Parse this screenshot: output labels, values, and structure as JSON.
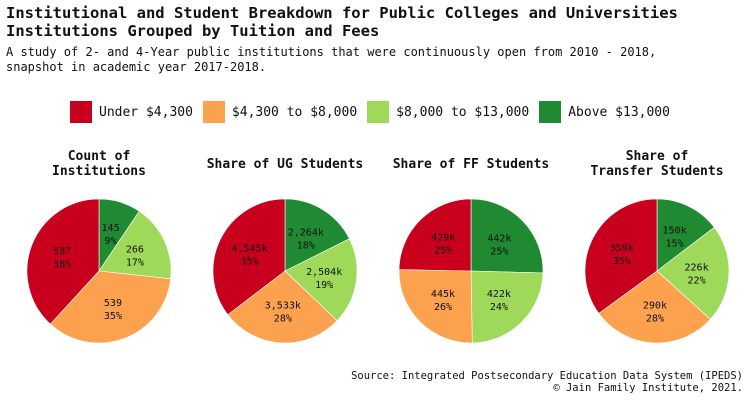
{
  "title": "Institutional and Student Breakdown for Public Colleges and Universities\nInstitutions Grouped by Tuition and Fees",
  "subtitle": "A study of 2- and 4-Year public institutions that were continuously open from 2010 - 2018,\nsnapshot in academic year 2017-2018.",
  "legend": [
    {
      "label": "Under $4,300",
      "color": "#c8001e"
    },
    {
      "label": "$4,300 to $8,000",
      "color": "#fca14e"
    },
    {
      "label": "$8,000 to $13,000",
      "color": "#9fd95a"
    },
    {
      "label": "Above $13,000",
      "color": "#1f8a32"
    }
  ],
  "source": "Source: Integrated Postsecondary Education Data System (IPEDS)\n© Jain Family Institute, 2021.",
  "chart_data": [
    {
      "type": "pie",
      "title": "Count of\nInstitutions",
      "categories": [
        "Under $4,300",
        "$4,300 to $8,000",
        "$8,000 to $13,000",
        "Above $13,000"
      ],
      "values": [
        587,
        539,
        266,
        145
      ],
      "value_labels": [
        "587",
        "539",
        "266",
        "145"
      ],
      "percent_labels": [
        "38%",
        "35%",
        "17%",
        "9%"
      ]
    },
    {
      "type": "pie",
      "title": "Share of UG Students",
      "categories": [
        "Under $4,300",
        "$4,300 to $8,000",
        "$8,000 to $13,000",
        "Above $13,000"
      ],
      "values": [
        4545,
        3533,
        2504,
        2264
      ],
      "value_labels": [
        "4,545k",
        "3,533k",
        "2,504k",
        "2,264k"
      ],
      "percent_labels": [
        "35%",
        "28%",
        "19%",
        "18%"
      ]
    },
    {
      "type": "pie",
      "title": "Share of FF Students",
      "categories": [
        "Under $4,300",
        "$4,300 to $8,000",
        "$8,000 to $13,000",
        "Above $13,000"
      ],
      "values": [
        429,
        445,
        422,
        442
      ],
      "value_labels": [
        "429k",
        "445k",
        "422k",
        "442k"
      ],
      "percent_labels": [
        "25%",
        "26%",
        "24%",
        "25%"
      ]
    },
    {
      "type": "pie",
      "title": "Share of\nTransfer Students",
      "categories": [
        "Under $4,300",
        "$4,300 to $8,000",
        "$8,000 to $13,000",
        "Above $13,000"
      ],
      "values": [
        359,
        290,
        226,
        150
      ],
      "value_labels": [
        "359k",
        "290k",
        "226k",
        "150k"
      ],
      "percent_labels": [
        "35%",
        "28%",
        "22%",
        "15%"
      ]
    }
  ]
}
